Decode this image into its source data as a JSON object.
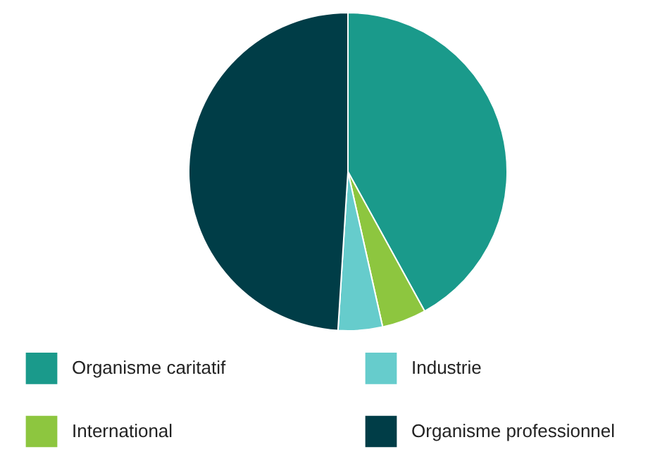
{
  "chart_data": {
    "type": "pie",
    "categories": [
      "Organisme caritatif",
      "International",
      "Industrie",
      "Organisme professionnel"
    ],
    "values": [
      42,
      4.5,
      4.5,
      49
    ],
    "colors": [
      "#1a9a8b",
      "#8dc63f",
      "#66cccc",
      "#003d47"
    ],
    "legend": "bottom"
  }
}
